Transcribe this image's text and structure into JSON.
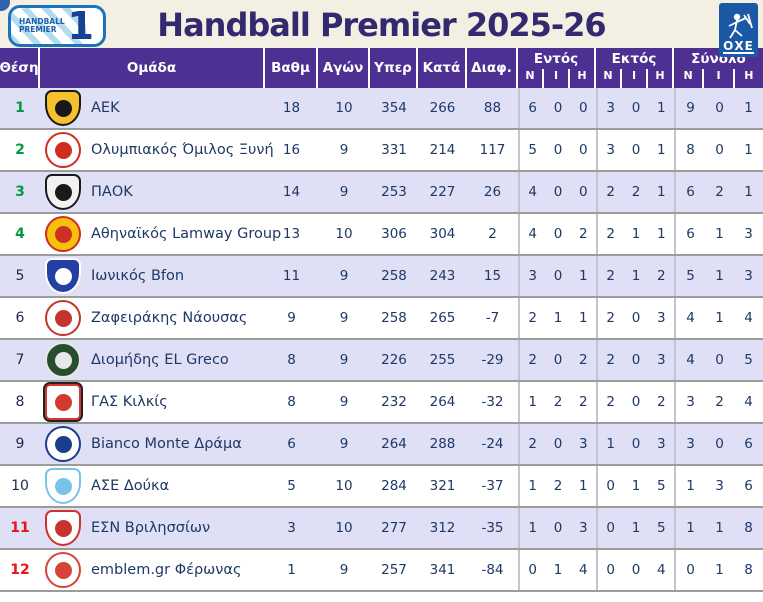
{
  "header": {
    "title": "Handball Premier 2025-26",
    "league_logo": {
      "line1": "HANDBALL",
      "line2": "PREMIER",
      "number": "1"
    },
    "federation_logo": {
      "text": "ΟΧΕ"
    }
  },
  "colors": {
    "header_purple": "#4e3093",
    "topbar_cream": "#f3efe3",
    "title_text": "#33296f",
    "row_alt_lavender": "#dfdff6",
    "data_text_navy": "#1f3864",
    "position_green": "#009b3f",
    "position_red": "#ee1111",
    "row_separator_gray": "#9b9b9b"
  },
  "table": {
    "columns": {
      "position": "Θέση",
      "team": "Ομάδα",
      "points": "Βαθμ",
      "games": "Αγών",
      "goals_for": "Υπερ",
      "goals_against": "Κατά",
      "diff": "Διαφ.",
      "home": "Εντός",
      "away": "Εκτός",
      "total": "Σύνολο",
      "sub": [
        "Ν",
        "Ι",
        "Η"
      ]
    },
    "rows": [
      {
        "pos": "1",
        "pos_color": "green",
        "team": "ΑΕΚ",
        "points": 18,
        "games": 10,
        "goals_for": 354,
        "goals_against": 266,
        "diff": 88,
        "home": [
          6,
          0,
          0
        ],
        "away": [
          3,
          0,
          1
        ],
        "total": [
          9,
          0,
          1
        ],
        "logo": {
          "shape": "shield",
          "bg": "#f6c12d",
          "fg": "#181818"
        }
      },
      {
        "pos": "2",
        "pos_color": "green",
        "team": "Ολυμπιακός Όμιλος Ξυνή",
        "points": 16,
        "games": 9,
        "goals_for": 331,
        "goals_against": 214,
        "diff": 117,
        "home": [
          5,
          0,
          0
        ],
        "away": [
          3,
          0,
          1
        ],
        "total": [
          8,
          0,
          1
        ],
        "logo": {
          "shape": "circle",
          "bg": "#ffffff",
          "fg": "#d22b1f"
        }
      },
      {
        "pos": "3",
        "pos_color": "green",
        "team": "ΠΑΟΚ",
        "points": 14,
        "games": 9,
        "goals_for": 253,
        "goals_against": 227,
        "diff": 26,
        "home": [
          4,
          0,
          0
        ],
        "away": [
          2,
          2,
          1
        ],
        "total": [
          6,
          2,
          1
        ],
        "logo": {
          "shape": "shield",
          "bg": "#f2f2f2",
          "fg": "#1a1a1a"
        }
      },
      {
        "pos": "4",
        "pos_color": "green",
        "team": "Αθηναϊκός Lamway Group",
        "points": 13,
        "games": 10,
        "goals_for": 306,
        "goals_against": 304,
        "diff": 2,
        "home": [
          4,
          0,
          2
        ],
        "away": [
          2,
          1,
          1
        ],
        "total": [
          6,
          1,
          3
        ],
        "logo": {
          "shape": "circle",
          "bg": "#f4c20d",
          "fg": "#cf2e24"
        }
      },
      {
        "pos": "5",
        "pos_color": "navy",
        "team": "Ιωνικός Bfon",
        "points": 11,
        "games": 9,
        "goals_for": 258,
        "goals_against": 243,
        "diff": 15,
        "home": [
          3,
          0,
          1
        ],
        "away": [
          2,
          1,
          2
        ],
        "total": [
          5,
          1,
          3
        ],
        "logo": {
          "shape": "shield",
          "bg": "#2540a4",
          "fg": "#ffffff"
        }
      },
      {
        "pos": "6",
        "pos_color": "navy",
        "team": "Ζαφειράκης Νάουσας",
        "points": 9,
        "games": 9,
        "goals_for": 258,
        "goals_against": 265,
        "diff": -7,
        "home": [
          2,
          1,
          1
        ],
        "away": [
          2,
          0,
          3
        ],
        "total": [
          4,
          1,
          4
        ],
        "logo": {
          "shape": "circle",
          "bg": "#ffffff",
          "fg": "#c4342c"
        }
      },
      {
        "pos": "7",
        "pos_color": "navy",
        "team": "Διομήδης EL Greco",
        "points": 8,
        "games": 9,
        "goals_for": 226,
        "goals_against": 255,
        "diff": -29,
        "home": [
          2,
          0,
          2
        ],
        "away": [
          2,
          0,
          3
        ],
        "total": [
          4,
          0,
          5
        ],
        "logo": {
          "shape": "circle",
          "bg": "#274f2d",
          "fg": "#e8e8e8"
        }
      },
      {
        "pos": "8",
        "pos_color": "navy",
        "team": "ΓΑΣ Κιλκίς",
        "points": 8,
        "games": 9,
        "goals_for": 232,
        "goals_against": 264,
        "diff": -32,
        "home": [
          1,
          2,
          2
        ],
        "away": [
          2,
          0,
          2
        ],
        "total": [
          3,
          2,
          4
        ],
        "logo": {
          "shape": "square",
          "bg": "#ffffff",
          "fg": "#d03a30"
        }
      },
      {
        "pos": "9",
        "pos_color": "navy",
        "team": "Bianco Monte Δράμα",
        "points": 6,
        "games": 9,
        "goals_for": 264,
        "goals_against": 288,
        "diff": -24,
        "home": [
          2,
          0,
          3
        ],
        "away": [
          1,
          0,
          3
        ],
        "total": [
          3,
          0,
          6
        ],
        "logo": {
          "shape": "circle",
          "bg": "#ffffff",
          "fg": "#1c3c8c"
        }
      },
      {
        "pos": "10",
        "pos_color": "navy",
        "team": "ΑΣΕ Δούκα",
        "points": 5,
        "games": 10,
        "goals_for": 284,
        "goals_against": 321,
        "diff": -37,
        "home": [
          1,
          2,
          1
        ],
        "away": [
          0,
          1,
          5
        ],
        "total": [
          1,
          3,
          6
        ],
        "logo": {
          "shape": "shield",
          "bg": "#ffffff",
          "fg": "#79c3e6"
        }
      },
      {
        "pos": "11",
        "pos_color": "red",
        "team": "ΕΣΝ Βριλησσίων",
        "points": 3,
        "games": 10,
        "goals_for": 277,
        "goals_against": 312,
        "diff": -35,
        "home": [
          1,
          0,
          3
        ],
        "away": [
          0,
          1,
          5
        ],
        "total": [
          1,
          1,
          8
        ],
        "logo": {
          "shape": "shield",
          "bg": "#ffffff",
          "fg": "#c8342c"
        }
      },
      {
        "pos": "12",
        "pos_color": "red",
        "team": "emblem.gr Φέρωνας",
        "points": 1,
        "games": 9,
        "goals_for": 257,
        "goals_against": 341,
        "diff": -84,
        "home": [
          0,
          1,
          4
        ],
        "away": [
          0,
          0,
          4
        ],
        "total": [
          0,
          1,
          8
        ],
        "logo": {
          "shape": "circle",
          "bg": "#ffffff",
          "fg": "#d84339"
        }
      }
    ]
  }
}
